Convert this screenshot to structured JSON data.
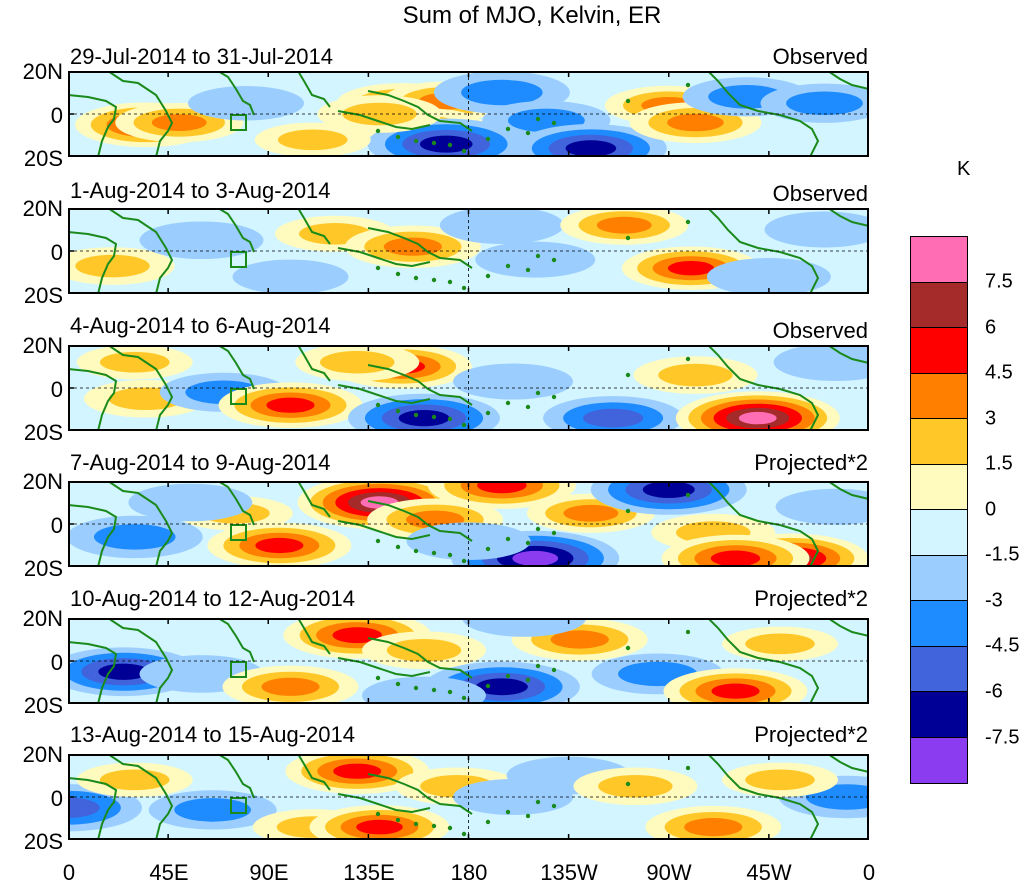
{
  "chart_data": {
    "type": "heatmap",
    "title": "Sum of MJO, Kelvin, ER",
    "units": "K",
    "x_tick_labels": [
      "0",
      "45E",
      "90E",
      "135E",
      "180",
      "135W",
      "90W",
      "45W",
      "0"
    ],
    "y_tick_labels": [
      "20N",
      "0",
      "20S"
    ],
    "longitude_range": [
      0,
      360
    ],
    "latitude_range": [
      -20,
      20
    ],
    "colorbar": {
      "levels": [
        "7.5",
        "6",
        "4.5",
        "3",
        "1.5",
        "0",
        "-1.5",
        "-3",
        "-4.5",
        "-6",
        "-7.5"
      ],
      "colors": [
        "#ff6eb4",
        "#a52a2a",
        "#ff0000",
        "#ff7f00",
        "#ffc828",
        "#fffabe",
        "#d2f5ff",
        "#9bcdff",
        "#1e8cff",
        "#4164dc",
        "#000096",
        "#8c3cf0"
      ]
    },
    "panels": [
      {
        "date_range": "29-Jul-2014 to 31-Jul-2014",
        "label": "Observed"
      },
      {
        "date_range": "1-Aug-2014 to 3-Aug-2014",
        "label": "Observed"
      },
      {
        "date_range": "4-Aug-2014 to 6-Aug-2014",
        "label": "Observed"
      },
      {
        "date_range": "7-Aug-2014 to 9-Aug-2014",
        "label": "Projected*2"
      },
      {
        "date_range": "10-Aug-2014 to 12-Aug-2014",
        "label": "Projected*2"
      },
      {
        "date_range": "13-Aug-2014 to 15-Aug-2014",
        "label": "Projected*2"
      }
    ],
    "anomaly_blobs": [
      [
        {
          "lon": 35,
          "lat": -5,
          "v": 5.2
        },
        {
          "lon": 50,
          "lat": -4,
          "v": 3.5
        },
        {
          "lon": 150,
          "lat": 5,
          "v": 3.8
        },
        {
          "lon": 170,
          "lat": 6,
          "v": 3.5
        },
        {
          "lon": 195,
          "lat": 10,
          "v": -4.5
        },
        {
          "lon": 160,
          "lat": -6,
          "v": 3
        },
        {
          "lon": 170,
          "lat": -14,
          "v": -7.2
        },
        {
          "lon": 140,
          "lat": 0,
          "v": 3
        },
        {
          "lon": 215,
          "lat": -3,
          "v": -3.5
        },
        {
          "lon": 235,
          "lat": -16,
          "v": -6.5
        },
        {
          "lon": 270,
          "lat": 4,
          "v": 3.5
        },
        {
          "lon": 282,
          "lat": -4,
          "v": 4
        },
        {
          "lon": 305,
          "lat": 8,
          "v": -3.5
        },
        {
          "lon": 340,
          "lat": 5,
          "v": -3.5
        },
        {
          "lon": 110,
          "lat": -12,
          "v": 2
        },
        {
          "lon": 80,
          "lat": 5,
          "v": -2
        }
      ],
      [
        {
          "lon": 20,
          "lat": -7,
          "v": 3
        },
        {
          "lon": 60,
          "lat": 5,
          "v": -3
        },
        {
          "lon": 120,
          "lat": 8,
          "v": 2.5
        },
        {
          "lon": 155,
          "lat": 2,
          "v": 4.5
        },
        {
          "lon": 195,
          "lat": 12,
          "v": -3
        },
        {
          "lon": 210,
          "lat": -4,
          "v": -2.5
        },
        {
          "lon": 250,
          "lat": 12,
          "v": 3.5
        },
        {
          "lon": 280,
          "lat": -8,
          "v": 4.8
        },
        {
          "lon": 315,
          "lat": -12,
          "v": -3
        },
        {
          "lon": 340,
          "lat": 10,
          "v": -2.5
        },
        {
          "lon": 100,
          "lat": -12,
          "v": -2
        }
      ],
      [
        {
          "lon": 35,
          "lat": -5,
          "v": 3
        },
        {
          "lon": 70,
          "lat": -2,
          "v": -3.5
        },
        {
          "lon": 100,
          "lat": -8,
          "v": 5.5
        },
        {
          "lon": 150,
          "lat": 10,
          "v": 5
        },
        {
          "lon": 130,
          "lat": 12,
          "v": 3
        },
        {
          "lon": 160,
          "lat": -14,
          "v": -6.5
        },
        {
          "lon": 200,
          "lat": 3,
          "v": -2.5
        },
        {
          "lon": 245,
          "lat": -14,
          "v": -5
        },
        {
          "lon": 282,
          "lat": 6,
          "v": 3
        },
        {
          "lon": 310,
          "lat": -14,
          "v": 8
        },
        {
          "lon": 345,
          "lat": 12,
          "v": -3
        },
        {
          "lon": 30,
          "lat": 12,
          "v": 2
        }
      ],
      [
        {
          "lon": 30,
          "lat": -6,
          "v": -4.5
        },
        {
          "lon": 75,
          "lat": 5,
          "v": 2
        },
        {
          "lon": 95,
          "lat": -10,
          "v": 5.5
        },
        {
          "lon": 140,
          "lat": 10,
          "v": 8
        },
        {
          "lon": 165,
          "lat": 2,
          "v": 4.5
        },
        {
          "lon": 195,
          "lat": 18,
          "v": 6
        },
        {
          "lon": 210,
          "lat": -16,
          "v": -8.5
        },
        {
          "lon": 180,
          "lat": -8,
          "v": -3
        },
        {
          "lon": 235,
          "lat": 5,
          "v": 3.5
        },
        {
          "lon": 270,
          "lat": 16,
          "v": -7
        },
        {
          "lon": 290,
          "lat": -4,
          "v": 3
        },
        {
          "lon": 325,
          "lat": -16,
          "v": 6.8
        },
        {
          "lon": 300,
          "lat": -16,
          "v": 6
        },
        {
          "lon": 55,
          "lat": 10,
          "v": -3
        },
        {
          "lon": 345,
          "lat": 8,
          "v": -2.5
        }
      ],
      [
        {
          "lon": 25,
          "lat": -5,
          "v": -6.5
        },
        {
          "lon": 60,
          "lat": -6,
          "v": -3
        },
        {
          "lon": 130,
          "lat": 12,
          "v": 6
        },
        {
          "lon": 100,
          "lat": -12,
          "v": 4.5
        },
        {
          "lon": 160,
          "lat": 5,
          "v": 3
        },
        {
          "lon": 195,
          "lat": -12,
          "v": -7
        },
        {
          "lon": 230,
          "lat": 10,
          "v": 4.5
        },
        {
          "lon": 205,
          "lat": 20,
          "v": -3
        },
        {
          "lon": 265,
          "lat": -6,
          "v": -4
        },
        {
          "lon": 300,
          "lat": -14,
          "v": 5.5
        },
        {
          "lon": 320,
          "lat": 8,
          "v": 2
        },
        {
          "lon": 160,
          "lat": -16,
          "v": -3
        }
      ],
      [
        {
          "lon": 0,
          "lat": -5,
          "v": -6
        },
        {
          "lon": 65,
          "lat": -6,
          "v": -3.5
        },
        {
          "lon": 130,
          "lat": 12,
          "v": 5.5
        },
        {
          "lon": 110,
          "lat": -14,
          "v": 2.5
        },
        {
          "lon": 140,
          "lat": -14,
          "v": 5
        },
        {
          "lon": 175,
          "lat": 5,
          "v": 3
        },
        {
          "lon": 200,
          "lat": 0,
          "v": -2.5
        },
        {
          "lon": 225,
          "lat": 10,
          "v": -3
        },
        {
          "lon": 255,
          "lat": 5,
          "v": 3
        },
        {
          "lon": 290,
          "lat": -14,
          "v": 4.5
        },
        {
          "lon": 350,
          "lat": 0,
          "v": -4.5
        },
        {
          "lon": 30,
          "lat": 8,
          "v": 2
        },
        {
          "lon": 320,
          "lat": 8,
          "v": 2
        }
      ]
    ]
  }
}
